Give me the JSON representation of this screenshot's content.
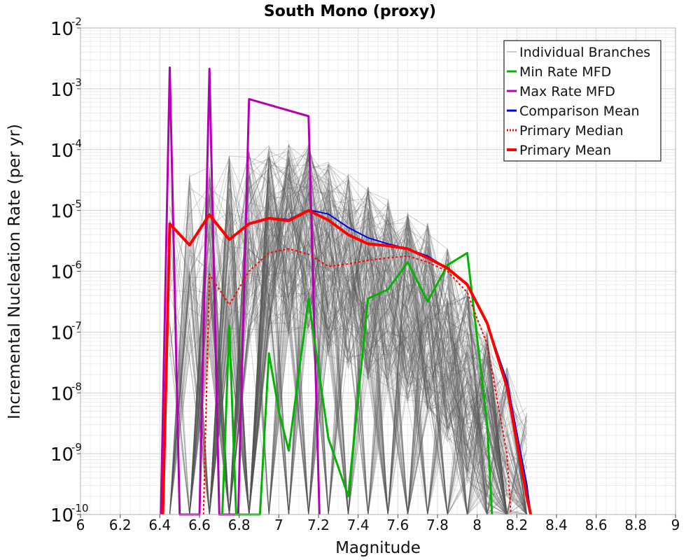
{
  "chart_data": {
    "type": "line",
    "title": "South Mono (proxy)",
    "xlabel": "Magnitude",
    "ylabel": "Incremental Nucleation Rate (per yr)",
    "xlim": [
      6,
      9
    ],
    "ylim_log10": [
      -10,
      -2
    ],
    "x_ticks": [
      6,
      6.2,
      6.4,
      6.6,
      6.8,
      7,
      7.2,
      7.4,
      7.6,
      7.8,
      8,
      8.2,
      8.4,
      8.6,
      8.8,
      9
    ],
    "x_tick_labels": [
      "6",
      "6.2",
      "6.4",
      "6.6",
      "6.8",
      "7",
      "7.2",
      "7.4",
      "7.6",
      "7.8",
      "8",
      "8.2",
      "8.4",
      "8.6",
      "8.8",
      "9"
    ],
    "y_ticks": [
      {
        "base": "10",
        "exp": "-10",
        "log": -10
      },
      {
        "base": "10",
        "exp": "-9",
        "log": -9
      },
      {
        "base": "10",
        "exp": "-8",
        "log": -8
      },
      {
        "base": "10",
        "exp": "-7",
        "log": -7
      },
      {
        "base": "10",
        "exp": "-6",
        "log": -6
      },
      {
        "base": "10",
        "exp": "-5",
        "log": -5
      },
      {
        "base": "10",
        "exp": "-4",
        "log": -4
      },
      {
        "base": "10",
        "exp": "-3",
        "log": -3
      },
      {
        "base": "10",
        "exp": "-2",
        "log": -2
      }
    ],
    "grid": true,
    "legend_position": "top-right",
    "legend": [
      {
        "label": "Individual Branches",
        "color": "#999999",
        "style": "thin"
      },
      {
        "label": "Min Rate MFD",
        "color": "#00b400",
        "style": "solid"
      },
      {
        "label": "Max Rate MFD",
        "color": "#b400b4",
        "style": "solid"
      },
      {
        "label": "Comparison Mean",
        "color": "#0000e6",
        "style": "solid"
      },
      {
        "label": " Primary Median",
        "color": "#ff0000",
        "style": "dotted"
      },
      {
        "label": "Primary Mean",
        "color": "#ff0000",
        "style": "thick"
      }
    ],
    "series": [
      {
        "name": "Max Rate MFD",
        "color": "#b400b4",
        "width": 3,
        "dash": "",
        "x": [
          6.405,
          6.45,
          6.5,
          6.6,
          6.65,
          6.7,
          6.795,
          6.85,
          7.15,
          7.205
        ],
        "log10_y": [
          -10,
          -2.65,
          -10,
          -10,
          -2.67,
          -10,
          -10,
          -3.17,
          -3.45,
          -10
        ]
      },
      {
        "name": "Min Rate MFD",
        "color": "#00b400",
        "width": 3,
        "dash": "",
        "x": [
          6.715,
          6.75,
          6.785,
          6.905,
          6.95,
          7.0,
          7.05,
          7.15,
          7.25,
          7.35,
          7.45,
          7.55,
          7.65,
          7.75,
          7.85,
          7.95,
          8.05,
          8.075
        ],
        "log10_y": [
          -10,
          -6.9,
          -10,
          -10,
          -7.35,
          -8.3,
          -8.95,
          -6.45,
          -8.75,
          -9.7,
          -6.45,
          -6.3,
          -5.85,
          -6.5,
          -5.9,
          -5.7,
          -8.5,
          -10
        ]
      },
      {
        "name": "Comparison Mean",
        "color": "#0000e6",
        "width": 2,
        "dash": "",
        "x": [
          6.415,
          6.45,
          6.55,
          6.65,
          6.75,
          6.85,
          6.95,
          7.05,
          7.15,
          7.25,
          7.35,
          7.45,
          7.55,
          7.65,
          7.75,
          7.85,
          7.95,
          8.05,
          8.15,
          8.25,
          8.27
        ],
        "log10_y": [
          -10,
          -5.22,
          -5.57,
          -5.07,
          -5.48,
          -5.22,
          -5.12,
          -5.15,
          -4.99,
          -5.06,
          -5.28,
          -5.45,
          -5.55,
          -5.63,
          -5.75,
          -5.95,
          -6.2,
          -6.85,
          -7.8,
          -9.5,
          -10
        ]
      },
      {
        "name": "Primary Median",
        "color": "#ff0000",
        "width": 2,
        "dash": "3,3",
        "x": [
          6.62,
          6.65,
          6.75,
          6.85,
          6.95,
          7.05,
          7.15,
          7.25,
          7.35,
          7.45,
          7.55,
          7.65,
          7.75,
          7.85,
          7.95,
          8.05,
          8.15,
          8.17
        ],
        "log10_y": [
          -10,
          -6.05,
          -6.55,
          -6.0,
          -5.7,
          -5.63,
          -5.72,
          -5.92,
          -5.88,
          -5.82,
          -5.78,
          -5.75,
          -5.85,
          -6.0,
          -6.35,
          -7.2,
          -9.0,
          -10
        ]
      },
      {
        "name": "Primary Mean",
        "color": "#ff0000",
        "width": 4,
        "dash": "",
        "x": [
          6.415,
          6.45,
          6.55,
          6.65,
          6.75,
          6.85,
          6.95,
          7.05,
          7.15,
          7.25,
          7.35,
          7.45,
          7.55,
          7.65,
          7.75,
          7.85,
          7.95,
          8.05,
          8.15,
          8.25,
          8.27
        ],
        "log10_y": [
          -10,
          -5.22,
          -5.57,
          -5.07,
          -5.48,
          -5.22,
          -5.13,
          -5.17,
          -5.0,
          -5.16,
          -5.4,
          -5.55,
          -5.58,
          -5.63,
          -5.78,
          -5.95,
          -6.22,
          -6.85,
          -7.9,
          -9.7,
          -10
        ]
      }
    ]
  }
}
